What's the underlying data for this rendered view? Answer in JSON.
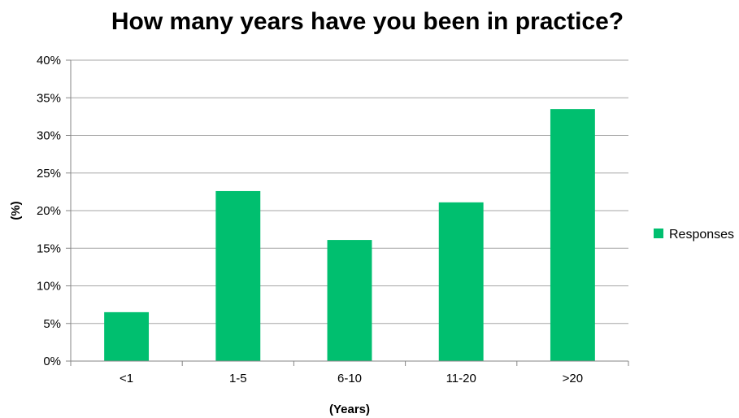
{
  "chart_data": {
    "type": "bar",
    "title": "How many years have you been in practice?",
    "xlabel": "(Years)",
    "ylabel": "(%)",
    "categories": [
      "<1",
      "1-5",
      "6-10",
      "11-20",
      ">20"
    ],
    "series": [
      {
        "name": "Responses",
        "values": [
          6.5,
          22.6,
          16.1,
          21.1,
          33.5
        ],
        "color": "#00bf6f"
      }
    ],
    "ylim": [
      0,
      40
    ],
    "yticks": [
      0,
      5,
      10,
      15,
      20,
      25,
      30,
      35,
      40
    ],
    "ytick_labels": [
      "0%",
      "5%",
      "10%",
      "15%",
      "20%",
      "25%",
      "30%",
      "35%",
      "40%"
    ],
    "grid": true,
    "legend": "right"
  }
}
